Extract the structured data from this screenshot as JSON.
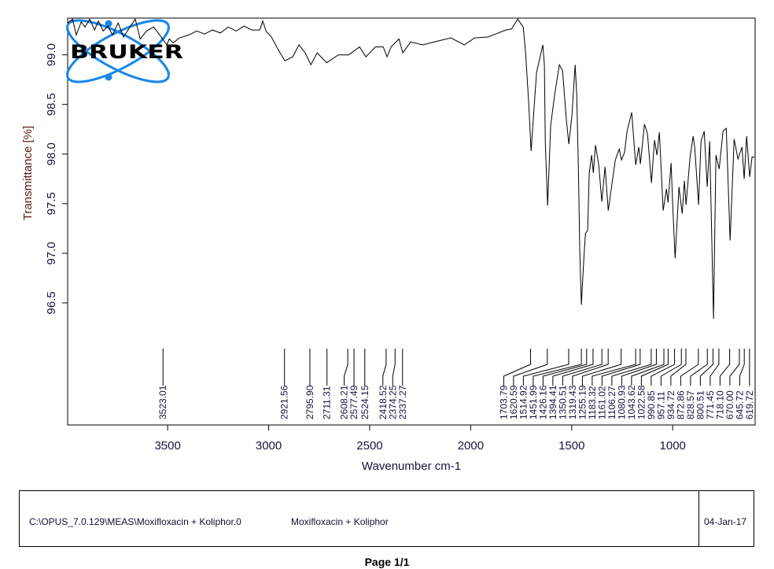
{
  "chart_data": {
    "type": "line",
    "title": "",
    "xlabel": "Wavenumber cm-1",
    "ylabel": "Transmittance [%]",
    "xlim": [
      3995,
      592
    ],
    "ylim": [
      95.27,
      99.37
    ],
    "x_reversed": true,
    "grid": false,
    "xticks": [
      3500,
      3000,
      2500,
      2000,
      1500,
      1000
    ],
    "xtick_labels": [
      "3500",
      "3000",
      "2500",
      "2000",
      "1500",
      "1000"
    ],
    "yticks": [
      99.0,
      98.5,
      98.0,
      97.5,
      97.0,
      96.5
    ],
    "ytick_labels": [
      "99.0",
      "98.5",
      "98.0",
      "97.5",
      "97.0",
      "96.5"
    ],
    "line_color": "#000000",
    "series": [
      {
        "points": [
          [
            3995,
            99.32
          ],
          [
            3971,
            99.36
          ],
          [
            3952,
            99.2
          ],
          [
            3928,
            99.33
          ],
          [
            3909,
            99.28
          ],
          [
            3886,
            99.36
          ],
          [
            3862,
            99.25
          ],
          [
            3843,
            99.34
          ],
          [
            3819,
            99.24
          ],
          [
            3796,
            99.29
          ],
          [
            3773,
            99.2
          ],
          [
            3745,
            99.32
          ],
          [
            3718,
            99.18
          ],
          [
            3687,
            99.28
          ],
          [
            3660,
            99.36
          ],
          [
            3636,
            99.16
          ],
          [
            3605,
            99.24
          ],
          [
            3570,
            99.28
          ],
          [
            3539,
            99.2
          ],
          [
            3504,
            99.1
          ],
          [
            3492,
            99.16
          ],
          [
            3473,
            99.12
          ],
          [
            3442,
            99.17
          ],
          [
            3395,
            99.2
          ],
          [
            3356,
            99.24
          ],
          [
            3317,
            99.21
          ],
          [
            3278,
            99.25
          ],
          [
            3239,
            99.22
          ],
          [
            3200,
            99.28
          ],
          [
            3161,
            99.24
          ],
          [
            3122,
            99.29
          ],
          [
            3083,
            99.25
          ],
          [
            3044,
            99.25
          ],
          [
            3029,
            99.34
          ],
          [
            3013,
            99.24
          ],
          [
            2986,
            99.18
          ],
          [
            2955,
            99.06
          ],
          [
            2920,
            98.94
          ],
          [
            2881,
            98.98
          ],
          [
            2850,
            99.1
          ],
          [
            2819,
            99.02
          ],
          [
            2791,
            98.9
          ],
          [
            2760,
            99.02
          ],
          [
            2713,
            98.92
          ],
          [
            2655,
            99.0
          ],
          [
            2604,
            99.0
          ],
          [
            2550,
            99.08
          ],
          [
            2519,
            98.98
          ],
          [
            2472,
            99.08
          ],
          [
            2433,
            99.08
          ],
          [
            2414,
            98.98
          ],
          [
            2394,
            99.08
          ],
          [
            2355,
            99.16
          ],
          [
            2336,
            99.02
          ],
          [
            2297,
            99.13
          ],
          [
            2238,
            99.1
          ],
          [
            2160,
            99.14
          ],
          [
            2098,
            99.17
          ],
          [
            2032,
            99.1
          ],
          [
            1981,
            99.17
          ],
          [
            1915,
            99.18
          ],
          [
            1876,
            99.21
          ],
          [
            1826,
            99.25
          ],
          [
            1798,
            99.26
          ],
          [
            1767,
            99.36
          ],
          [
            1740,
            99.28
          ],
          [
            1728,
            99.02
          ],
          [
            1713,
            98.52
          ],
          [
            1701,
            98.03
          ],
          [
            1689,
            98.39
          ],
          [
            1674,
            98.82
          ],
          [
            1643,
            99.1
          ],
          [
            1635,
            98.9
          ],
          [
            1631,
            98.13
          ],
          [
            1619,
            97.48
          ],
          [
            1604,
            98.29
          ],
          [
            1584,
            98.6
          ],
          [
            1561,
            98.9
          ],
          [
            1545,
            98.84
          ],
          [
            1526,
            98.34
          ],
          [
            1514,
            98.1
          ],
          [
            1499,
            98.39
          ],
          [
            1483,
            98.9
          ],
          [
            1475,
            98.6
          ],
          [
            1467,
            97.86
          ],
          [
            1460,
            97.02
          ],
          [
            1452,
            96.48
          ],
          [
            1440,
            96.94
          ],
          [
            1432,
            97.2
          ],
          [
            1421,
            97.23
          ],
          [
            1413,
            97.81
          ],
          [
            1401,
            97.99
          ],
          [
            1393,
            97.81
          ],
          [
            1382,
            98.09
          ],
          [
            1366,
            97.89
          ],
          [
            1351,
            97.52
          ],
          [
            1335,
            97.87
          ],
          [
            1319,
            97.43
          ],
          [
            1300,
            97.71
          ],
          [
            1284,
            97.94
          ],
          [
            1265,
            98.05
          ],
          [
            1253,
            97.94
          ],
          [
            1238,
            98.02
          ],
          [
            1226,
            98.23
          ],
          [
            1203,
            98.42
          ],
          [
            1183,
            97.89
          ],
          [
            1168,
            98.07
          ],
          [
            1160,
            97.9
          ],
          [
            1140,
            98.3
          ],
          [
            1125,
            98.21
          ],
          [
            1105,
            97.71
          ],
          [
            1090,
            98.14
          ],
          [
            1078,
            97.99
          ],
          [
            1066,
            98.22
          ],
          [
            1047,
            97.43
          ],
          [
            1031,
            97.65
          ],
          [
            1023,
            97.51
          ],
          [
            1008,
            97.91
          ],
          [
            1000,
            97.49
          ],
          [
            988,
            96.95
          ],
          [
            969,
            97.67
          ],
          [
            953,
            97.4
          ],
          [
            942,
            97.73
          ],
          [
            934,
            97.49
          ],
          [
            914,
            97.97
          ],
          [
            899,
            98.18
          ],
          [
            891,
            98.07
          ],
          [
            872,
            97.49
          ],
          [
            860,
            98.13
          ],
          [
            844,
            98.23
          ],
          [
            829,
            97.67
          ],
          [
            817,
            98.13
          ],
          [
            798,
            96.34
          ],
          [
            786,
            97.99
          ],
          [
            770,
            97.85
          ],
          [
            751,
            98.23
          ],
          [
            735,
            98.26
          ],
          [
            716,
            97.13
          ],
          [
            696,
            98.15
          ],
          [
            677,
            97.95
          ],
          [
            657,
            98.07
          ],
          [
            646,
            97.75
          ],
          [
            634,
            98.18
          ],
          [
            619,
            97.77
          ],
          [
            607,
            97.97
          ],
          [
            595,
            97.97
          ]
        ]
      }
    ],
    "peak_labels": [
      [
        "3523.01",
        "2921.56",
        "2795.90",
        "2711.31",
        "2608.21",
        "2577.49",
        "2524.15",
        "2418.52",
        "2374.25",
        "2337.27"
      ],
      [
        "1703.79",
        "1620.59",
        "1514.92",
        "1451.99",
        "1426.16",
        "1394.41",
        "1350.51",
        "1319.43",
        "1255.19",
        "1183.32",
        "1161.02",
        "1106.27",
        "1080.93",
        "1043.62",
        "1022.58",
        "990.85",
        "957.11",
        "934.72",
        "872.86",
        "828.57",
        "800.51",
        "771.45",
        "718.10",
        "670.00",
        "645.72",
        "619.72"
      ]
    ],
    "colors": {
      "axis_title": "#5a1a1a",
      "tick_text": "#14143c",
      "logo_blue": "#1a86e8"
    }
  },
  "logo": {
    "text": "BRUKER"
  },
  "footer": {
    "file_path": "C:\\OPUS_7.0.129\\MEAS\\Moxifloxacin + Koliphor.0",
    "sample_name": "Moxifloxacin + Koliphor",
    "date": "04-Jan-17",
    "page": "Page 1/1"
  }
}
